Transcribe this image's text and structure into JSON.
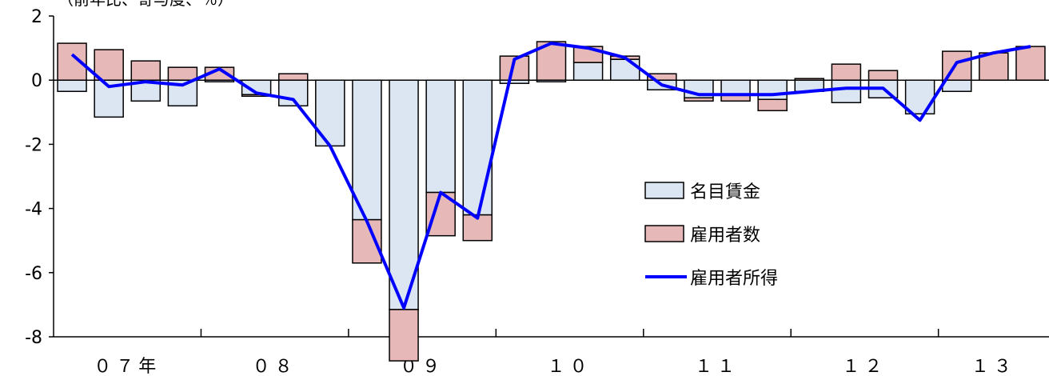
{
  "chart_data": {
    "type": "bar",
    "unit_label": "（前年比、寄与度、％）",
    "ylim": [
      -8,
      2
    ],
    "y_ticks": [
      2,
      0,
      -2,
      -4,
      -6,
      -8
    ],
    "y_tick_labels": [
      "2",
      "0",
      "-2",
      "-4",
      "-6",
      "-8"
    ],
    "x_year_labels": [
      {
        "label": "０７年",
        "start_quarter": 0
      },
      {
        "label": "０８",
        "start_quarter": 4
      },
      {
        "label": "０９",
        "start_quarter": 8
      },
      {
        "label": "１０",
        "start_quarter": 12
      },
      {
        "label": "１１",
        "start_quarter": 16
      },
      {
        "label": "１２",
        "start_quarter": 20
      },
      {
        "label": "１３",
        "start_quarter": 24
      }
    ],
    "quarters": 27,
    "series": [
      {
        "name": "名目賃金",
        "kind": "stacked-bar",
        "color": "#dce6f2",
        "values": [
          -0.35,
          -1.15,
          -0.65,
          -0.8,
          -0.05,
          -0.45,
          -0.8,
          -2.05,
          -4.35,
          -7.15,
          -3.5,
          -4.2,
          -0.1,
          -0.05,
          0.55,
          0.65,
          -0.3,
          -0.55,
          -0.45,
          -0.6,
          -0.35,
          -0.7,
          -0.55,
          -1.05,
          -0.35,
          0.0,
          0.0
        ]
      },
      {
        "name": "雇用者数",
        "kind": "stacked-bar",
        "color": "#e6b9b8",
        "values": [
          1.15,
          0.95,
          0.6,
          0.4,
          0.4,
          -0.05,
          0.2,
          0.0,
          -1.35,
          -1.6,
          -1.35,
          -0.8,
          0.75,
          1.2,
          0.5,
          0.1,
          0.2,
          -0.1,
          -0.2,
          -0.35,
          0.05,
          0.5,
          0.3,
          0.0,
          0.9,
          0.85,
          1.05
        ]
      },
      {
        "name": "雇用者所得",
        "kind": "line",
        "color": "#0000ff",
        "values": [
          0.8,
          -0.2,
          -0.05,
          -0.15,
          0.35,
          -0.4,
          -0.6,
          -2.05,
          -4.4,
          -7.1,
          -3.5,
          -4.3,
          0.65,
          1.15,
          1.0,
          0.7,
          -0.15,
          -0.45,
          -0.45,
          -0.45,
          -0.35,
          -0.25,
          -0.25,
          -1.25,
          0.55,
          0.85,
          1.05
        ]
      }
    ],
    "legend_placement": "center-right"
  }
}
